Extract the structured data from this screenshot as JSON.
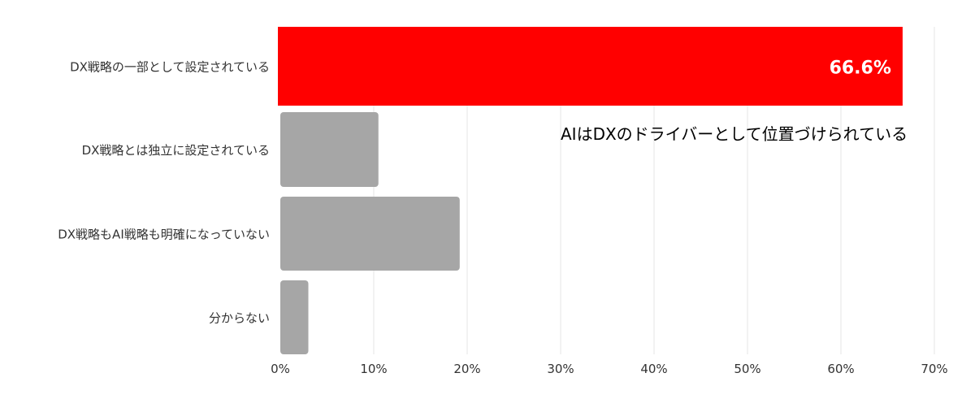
{
  "chart_data": {
    "type": "bar",
    "orientation": "horizontal",
    "categories": [
      "DX戦略の一部として設定されている",
      "DX戦略とは独立に設定されている",
      "DX戦略もAI戦略も明確になっていない",
      "分からない"
    ],
    "values": [
      66.6,
      10.5,
      19.2,
      3.0
    ],
    "value_labels": [
      "66.6%",
      "",
      "",
      ""
    ],
    "xlim": [
      0,
      70
    ],
    "xticks": [
      "0%",
      "10%",
      "20%",
      "30%",
      "40%",
      "50%",
      "60%",
      "70%"
    ],
    "grid": true,
    "annotation": "AIはDXのドライバーとして位置づけられている",
    "colors": {
      "highlight": "#ff0000",
      "default": "#a6a6a6",
      "grid": "#e6e6e6"
    }
  }
}
